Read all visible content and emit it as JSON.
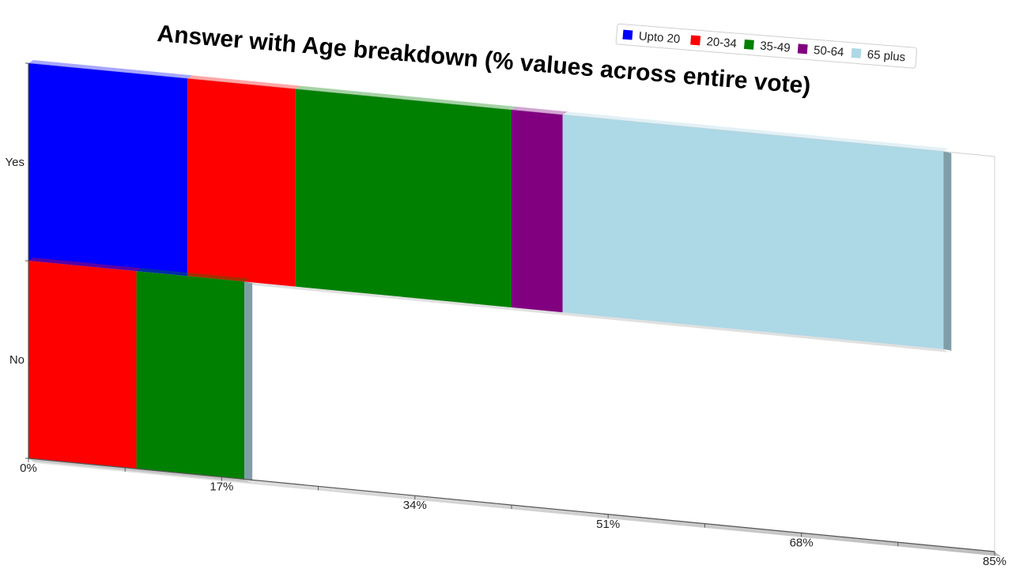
{
  "chart_data": {
    "type": "bar",
    "orientation": "horizontal",
    "stacked": true,
    "three_d": true,
    "title": "Answer with Age breakdown (% values across entire vote)",
    "categories": [
      "Yes",
      "No"
    ],
    "series": [
      {
        "name": "Upto 20",
        "color": "#0000ff",
        "values": [
          14,
          0
        ]
      },
      {
        "name": "20-34",
        "color": "#ff0000",
        "values": [
          9.5,
          9.5
        ]
      },
      {
        "name": "35-49",
        "color": "#008000",
        "values": [
          19,
          9.5
        ]
      },
      {
        "name": "50-64",
        "color": "#800080",
        "values": [
          4.5,
          0
        ]
      },
      {
        "name": "65 plus",
        "color": "#add8e6",
        "values": [
          33.5,
          0
        ]
      }
    ],
    "xlim": [
      0,
      85
    ],
    "xticks": [
      "0%",
      "17%",
      "34%",
      "51%",
      "68%",
      "85%"
    ],
    "grid": false,
    "legend_position": "top-right"
  }
}
